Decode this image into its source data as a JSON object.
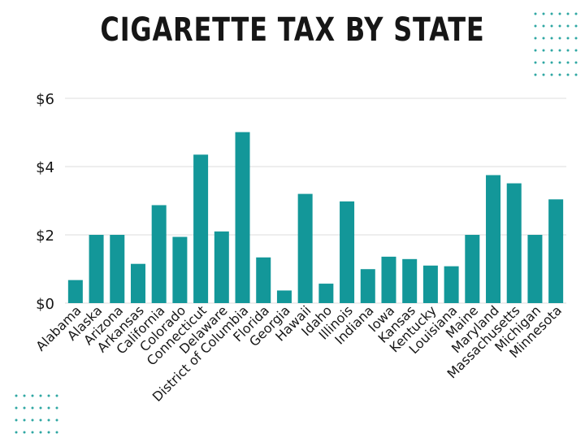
{
  "chart_data": {
    "type": "bar",
    "title": "CIGARETTE TAX BY STATE",
    "xlabel": "",
    "ylabel": "",
    "ylim": [
      0,
      6
    ],
    "y_ticks": [
      {
        "value": 0,
        "label": "$0"
      },
      {
        "value": 2,
        "label": "$2"
      },
      {
        "value": 4,
        "label": "$4"
      },
      {
        "value": 6,
        "label": "$6"
      }
    ],
    "grid": true,
    "categories": [
      "Alabama",
      "Alaska",
      "Arizona",
      "Arkansas",
      "California",
      "Colorado",
      "Connecticut",
      "Delaware",
      "District of Columbia",
      "Florida",
      "Georgia",
      "Hawaii",
      "Idaho",
      "Illinois",
      "Indiana",
      "Iowa",
      "Kansas",
      "Kentucky",
      "Louisiana",
      "Maine",
      "Maryland",
      "Massachusetts",
      "Michigan",
      "Minnesota"
    ],
    "values": [
      0.675,
      2.0,
      2.0,
      1.15,
      2.87,
      1.94,
      4.35,
      2.1,
      5.01,
      1.339,
      0.37,
      3.2,
      0.57,
      2.98,
      0.995,
      1.36,
      1.29,
      1.1,
      1.08,
      2.0,
      3.75,
      3.51,
      2.0,
      3.04
    ],
    "bar_color": "#139799",
    "grid_color": "#dddddd",
    "text_color": "#161616",
    "decoration_dot_color": "#2fa7a3"
  }
}
